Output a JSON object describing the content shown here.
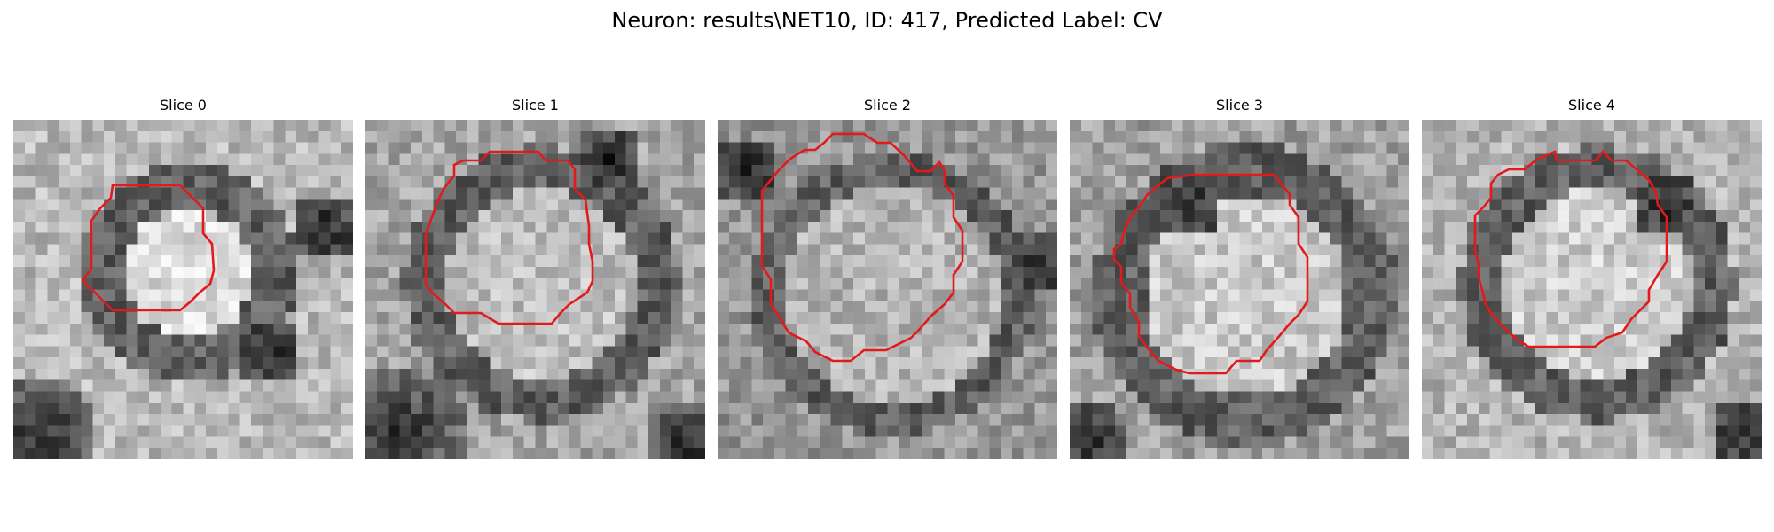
{
  "figure": {
    "title": "Neuron: results\\NET10, ID: 417, Predicted Label: CV",
    "contour_color": "#e31a1c",
    "colormap": "gray"
  },
  "slices": [
    {
      "title": "Slice 0"
    },
    {
      "title": "Slice 1"
    },
    {
      "title": "Slice 2"
    },
    {
      "title": "Slice 3"
    },
    {
      "title": "Slice 4"
    }
  ]
}
